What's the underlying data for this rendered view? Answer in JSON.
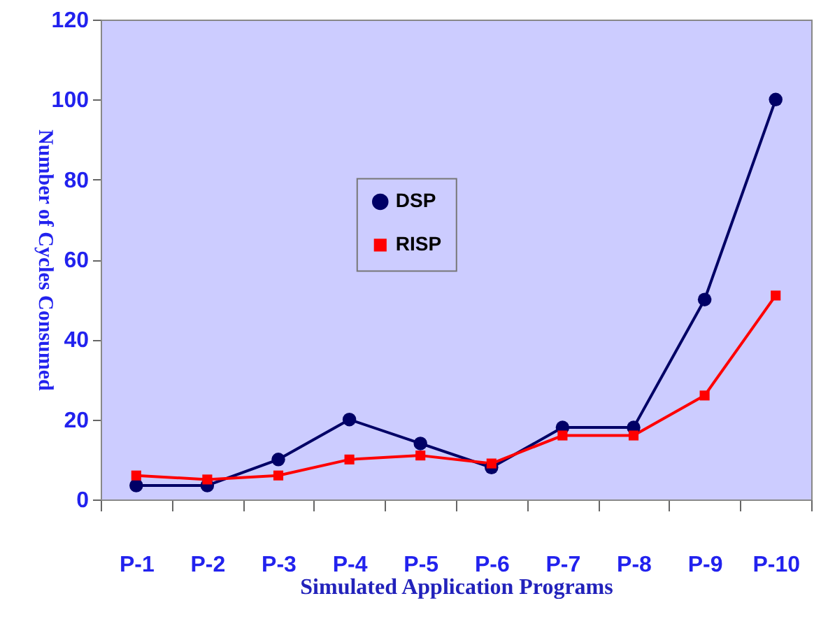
{
  "chart_data": {
    "type": "line",
    "xlabel": "Simulated Application Programs",
    "ylabel": "Number of Cycles Consumed",
    "categories": [
      "P-1",
      "P-2",
      "P-3",
      "P-4",
      "P-5",
      "P-6",
      "P-7",
      "P-8",
      "P-9",
      "P-10"
    ],
    "series": [
      {
        "name": "DSP",
        "color": "#000066",
        "marker": "circle",
        "values": [
          3.5,
          3.5,
          10,
          20,
          14,
          8,
          18,
          18,
          50,
          100
        ]
      },
      {
        "name": "RISP",
        "color": "#ff0000",
        "marker": "square",
        "values": [
          6,
          5,
          6,
          10,
          11,
          9,
          16,
          16,
          26,
          51
        ]
      }
    ],
    "ylim": [
      0,
      120
    ],
    "yticks": [
      0,
      20,
      40,
      60,
      80,
      100,
      120
    ],
    "grid": false,
    "legend": "center",
    "line_style": "solid"
  }
}
